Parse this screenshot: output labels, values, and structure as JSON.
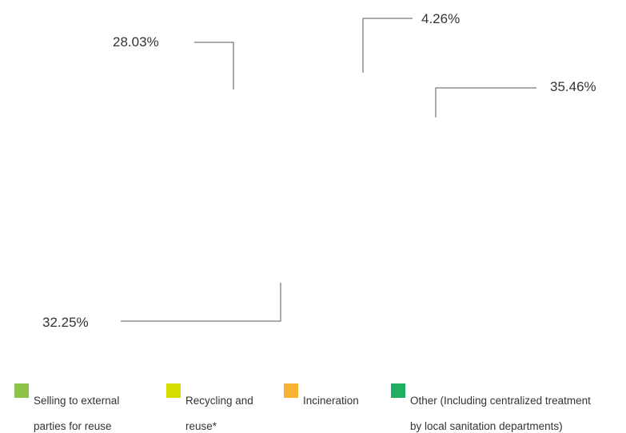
{
  "chart_data": {
    "type": "pie",
    "title": "",
    "series": [
      {
        "label": "Selling to external parties for reuse",
        "value": 28.03,
        "display": "28.03%",
        "color": "#8bc34a"
      },
      {
        "label": "Recycling and reuse*",
        "value": 4.26,
        "display": "4.26%",
        "color": "#d4dc00"
      },
      {
        "label": "Incineration",
        "value": 35.46,
        "display": "35.46%",
        "color": "#f9b233"
      },
      {
        "label": "Other (Including centralized treatment by local sanitation departments)",
        "value": 32.25,
        "display": "32.25%",
        "color": "#1fae62"
      }
    ],
    "legend": {
      "position": "bottom",
      "items": [
        {
          "line1": "Selling to external",
          "line2": "parties for reuse",
          "color": "#8bc34a"
        },
        {
          "line1": "Recycling and",
          "line2": "reuse*",
          "color": "#d4dc00"
        },
        {
          "line1": "Incineration",
          "line2": "",
          "color": "#f9b233"
        },
        {
          "line1": "Other (Including centralized treatment",
          "line2": "by local sanitation departments)",
          "color": "#1fae62"
        }
      ]
    }
  }
}
